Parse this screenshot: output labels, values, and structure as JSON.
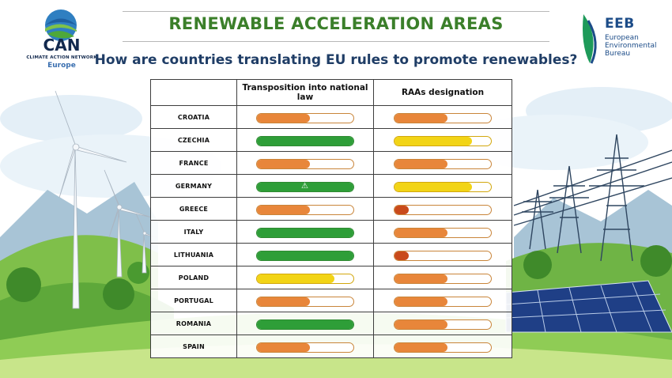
{
  "header": {
    "title": "RENEWABLE ACCELERATION AREAS",
    "subtitle": "How are countries translating EU rules to promote renewables?"
  },
  "logos": {
    "left": {
      "big": "CAN",
      "small": "CLIMATE ACTION NETWORK",
      "sub": "Europe"
    },
    "right": {
      "big": "EEB",
      "line1": "European",
      "line2": "Environmental",
      "line3": "Bureau"
    }
  },
  "colors": {
    "title": "#3b7f2a",
    "subtitle": "#1f3d66",
    "orange": "#e8863a",
    "green": "#2e9e38",
    "yellow": "#f2d416",
    "red": "#c94a1b"
  },
  "chart_data": {
    "type": "table",
    "columns": [
      "",
      "Transposition into national law",
      "RAAs designation"
    ],
    "rows": [
      {
        "country": "CROATIA",
        "transposition": {
          "level": 0.55,
          "status": "orange"
        },
        "designation": {
          "level": 0.55,
          "status": "orange"
        }
      },
      {
        "country": "CZECHIA",
        "transposition": {
          "level": 1.0,
          "status": "green"
        },
        "designation": {
          "level": 0.8,
          "status": "yellow"
        }
      },
      {
        "country": "FRANCE",
        "transposition": {
          "level": 0.55,
          "status": "orange"
        },
        "designation": {
          "level": 0.55,
          "status": "orange"
        }
      },
      {
        "country": "GERMANY",
        "transposition": {
          "level": 1.0,
          "status": "green",
          "warning": true
        },
        "designation": {
          "level": 0.8,
          "status": "yellow"
        }
      },
      {
        "country": "GREECE",
        "transposition": {
          "level": 0.55,
          "status": "orange"
        },
        "designation": {
          "level": 0.15,
          "status": "red"
        }
      },
      {
        "country": "ITALY",
        "transposition": {
          "level": 1.0,
          "status": "green"
        },
        "designation": {
          "level": 0.55,
          "status": "orange"
        }
      },
      {
        "country": "LITHUANIA",
        "transposition": {
          "level": 1.0,
          "status": "green"
        },
        "designation": {
          "level": 0.15,
          "status": "red"
        }
      },
      {
        "country": "POLAND",
        "transposition": {
          "level": 0.8,
          "status": "yellow"
        },
        "designation": {
          "level": 0.55,
          "status": "orange"
        }
      },
      {
        "country": "PORTUGAL",
        "transposition": {
          "level": 0.55,
          "status": "orange"
        },
        "designation": {
          "level": 0.55,
          "status": "orange"
        }
      },
      {
        "country": "ROMANIA",
        "transposition": {
          "level": 1.0,
          "status": "green"
        },
        "designation": {
          "level": 0.55,
          "status": "orange"
        }
      },
      {
        "country": "SPAIN",
        "transposition": {
          "level": 0.55,
          "status": "orange"
        },
        "designation": {
          "level": 0.55,
          "status": "orange"
        }
      }
    ]
  }
}
